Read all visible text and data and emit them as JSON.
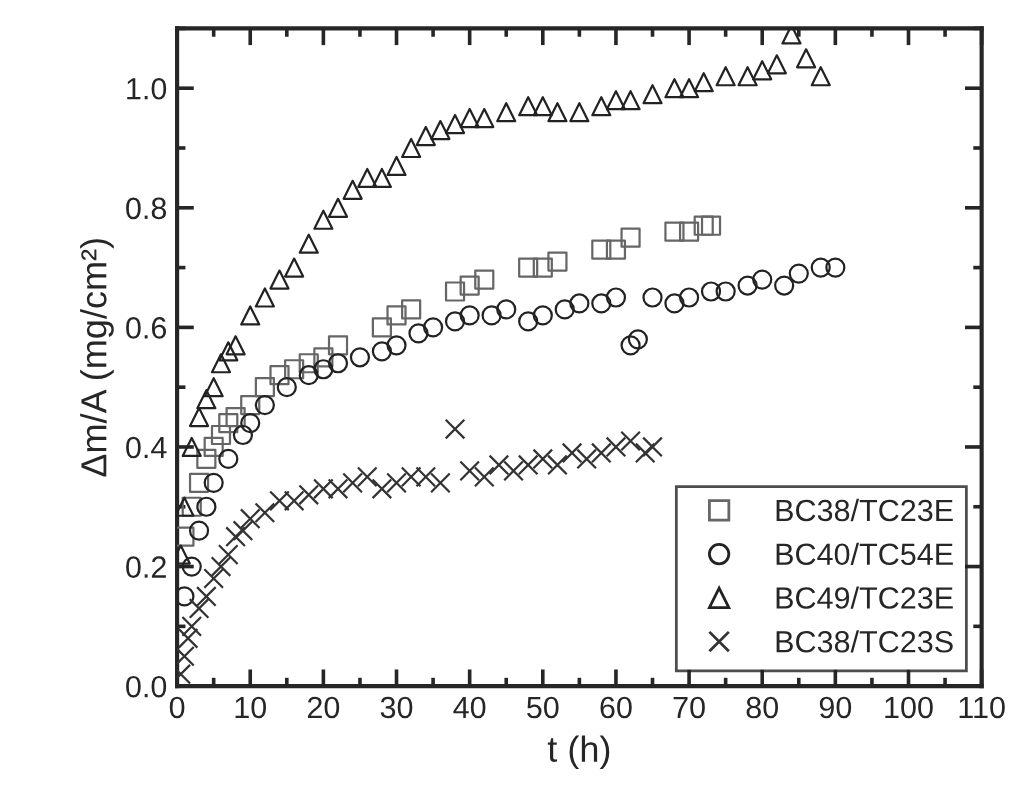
{
  "chart_data": {
    "type": "scatter",
    "xlabel": "t (h)",
    "ylabel": "Δm/A (mg/cm²)",
    "xlim": [
      0,
      110
    ],
    "xticks": [
      0,
      10,
      20,
      30,
      40,
      50,
      60,
      70,
      80,
      90,
      100,
      110
    ],
    "ylim": [
      0,
      1.1
    ],
    "yticks": [
      {
        "value": 0,
        "label": "0.0"
      },
      {
        "value": 0.2,
        "label": "0.2"
      },
      {
        "value": 0.4,
        "label": "0.4"
      },
      {
        "value": 0.6,
        "label": "0.6"
      },
      {
        "value": 0.8,
        "label": "0.8"
      },
      {
        "value": 1.0,
        "label": "1.0"
      }
    ],
    "grid": false,
    "legend": "bottom right",
    "series": [
      {
        "name": "BC38/TC23E",
        "color": "#666666",
        "marker": "square",
        "x": [
          1,
          2,
          3,
          4,
          5,
          6,
          7,
          8,
          10,
          12,
          14,
          16,
          18,
          20,
          22,
          28,
          30,
          32,
          38,
          40,
          42,
          48,
          50,
          52,
          58,
          60,
          62,
          68,
          70,
          72,
          73
        ],
        "values": [
          0.25,
          0.3,
          0.34,
          0.38,
          0.4,
          0.42,
          0.44,
          0.45,
          0.47,
          0.5,
          0.52,
          0.53,
          0.54,
          0.55,
          0.57,
          0.6,
          0.62,
          0.63,
          0.66,
          0.67,
          0.68,
          0.7,
          0.7,
          0.71,
          0.73,
          0.73,
          0.75,
          0.76,
          0.76,
          0.77,
          0.77
        ]
      },
      {
        "name": "BC40/TC54E",
        "color": "#222222",
        "marker": "circle",
        "x": [
          1,
          2,
          3,
          4,
          5,
          7,
          9,
          10,
          12,
          15,
          18,
          20,
          22,
          25,
          28,
          30,
          33,
          35,
          38,
          40,
          43,
          45,
          48,
          50,
          53,
          55,
          58,
          60,
          62,
          63,
          65,
          68,
          70,
          73,
          75,
          78,
          80,
          83,
          85,
          88,
          90
        ],
        "values": [
          0.15,
          0.2,
          0.26,
          0.3,
          0.34,
          0.38,
          0.42,
          0.44,
          0.47,
          0.5,
          0.52,
          0.53,
          0.54,
          0.55,
          0.56,
          0.57,
          0.59,
          0.6,
          0.61,
          0.62,
          0.62,
          0.63,
          0.61,
          0.62,
          0.63,
          0.64,
          0.64,
          0.65,
          0.57,
          0.58,
          0.65,
          0.64,
          0.65,
          0.66,
          0.66,
          0.67,
          0.68,
          0.67,
          0.69,
          0.7,
          0.7
        ]
      },
      {
        "name": "BC49/TC23E",
        "color": "#222222",
        "marker": "triangle",
        "x": [
          0.5,
          1,
          2,
          3,
          4,
          5,
          6,
          7,
          8,
          10,
          12,
          14,
          16,
          18,
          20,
          22,
          24,
          26,
          28,
          30,
          32,
          34,
          36,
          38,
          40,
          42,
          45,
          48,
          50,
          52,
          55,
          58,
          60,
          62,
          65,
          68,
          70,
          72,
          75,
          78,
          80,
          82,
          84,
          86,
          88
        ],
        "values": [
          0.22,
          0.3,
          0.4,
          0.45,
          0.48,
          0.5,
          0.54,
          0.56,
          0.57,
          0.62,
          0.65,
          0.68,
          0.7,
          0.74,
          0.78,
          0.8,
          0.83,
          0.85,
          0.85,
          0.87,
          0.9,
          0.92,
          0.93,
          0.94,
          0.95,
          0.95,
          0.96,
          0.97,
          0.97,
          0.96,
          0.96,
          0.97,
          0.98,
          0.98,
          0.99,
          1.0,
          1.0,
          1.01,
          1.02,
          1.02,
          1.03,
          1.04,
          1.09,
          1.05,
          1.02
        ]
      },
      {
        "name": "BC38/TC23S",
        "color": "#333333",
        "marker": "cross",
        "x": [
          0.5,
          1,
          1.5,
          2,
          3,
          4,
          5,
          6,
          7,
          8,
          9,
          10,
          12,
          14,
          16,
          18,
          20,
          22,
          24,
          26,
          28,
          30,
          32,
          34,
          36,
          38,
          40,
          42,
          44,
          46,
          48,
          50,
          52,
          54,
          56,
          58,
          60,
          62,
          64,
          65
        ],
        "values": [
          0.02,
          0.05,
          0.08,
          0.1,
          0.13,
          0.15,
          0.18,
          0.2,
          0.22,
          0.25,
          0.26,
          0.28,
          0.29,
          0.31,
          0.31,
          0.32,
          0.33,
          0.33,
          0.34,
          0.35,
          0.33,
          0.34,
          0.35,
          0.35,
          0.34,
          0.43,
          0.36,
          0.35,
          0.37,
          0.36,
          0.37,
          0.38,
          0.37,
          0.39,
          0.38,
          0.39,
          0.4,
          0.41,
          0.39,
          0.4
        ]
      }
    ]
  }
}
